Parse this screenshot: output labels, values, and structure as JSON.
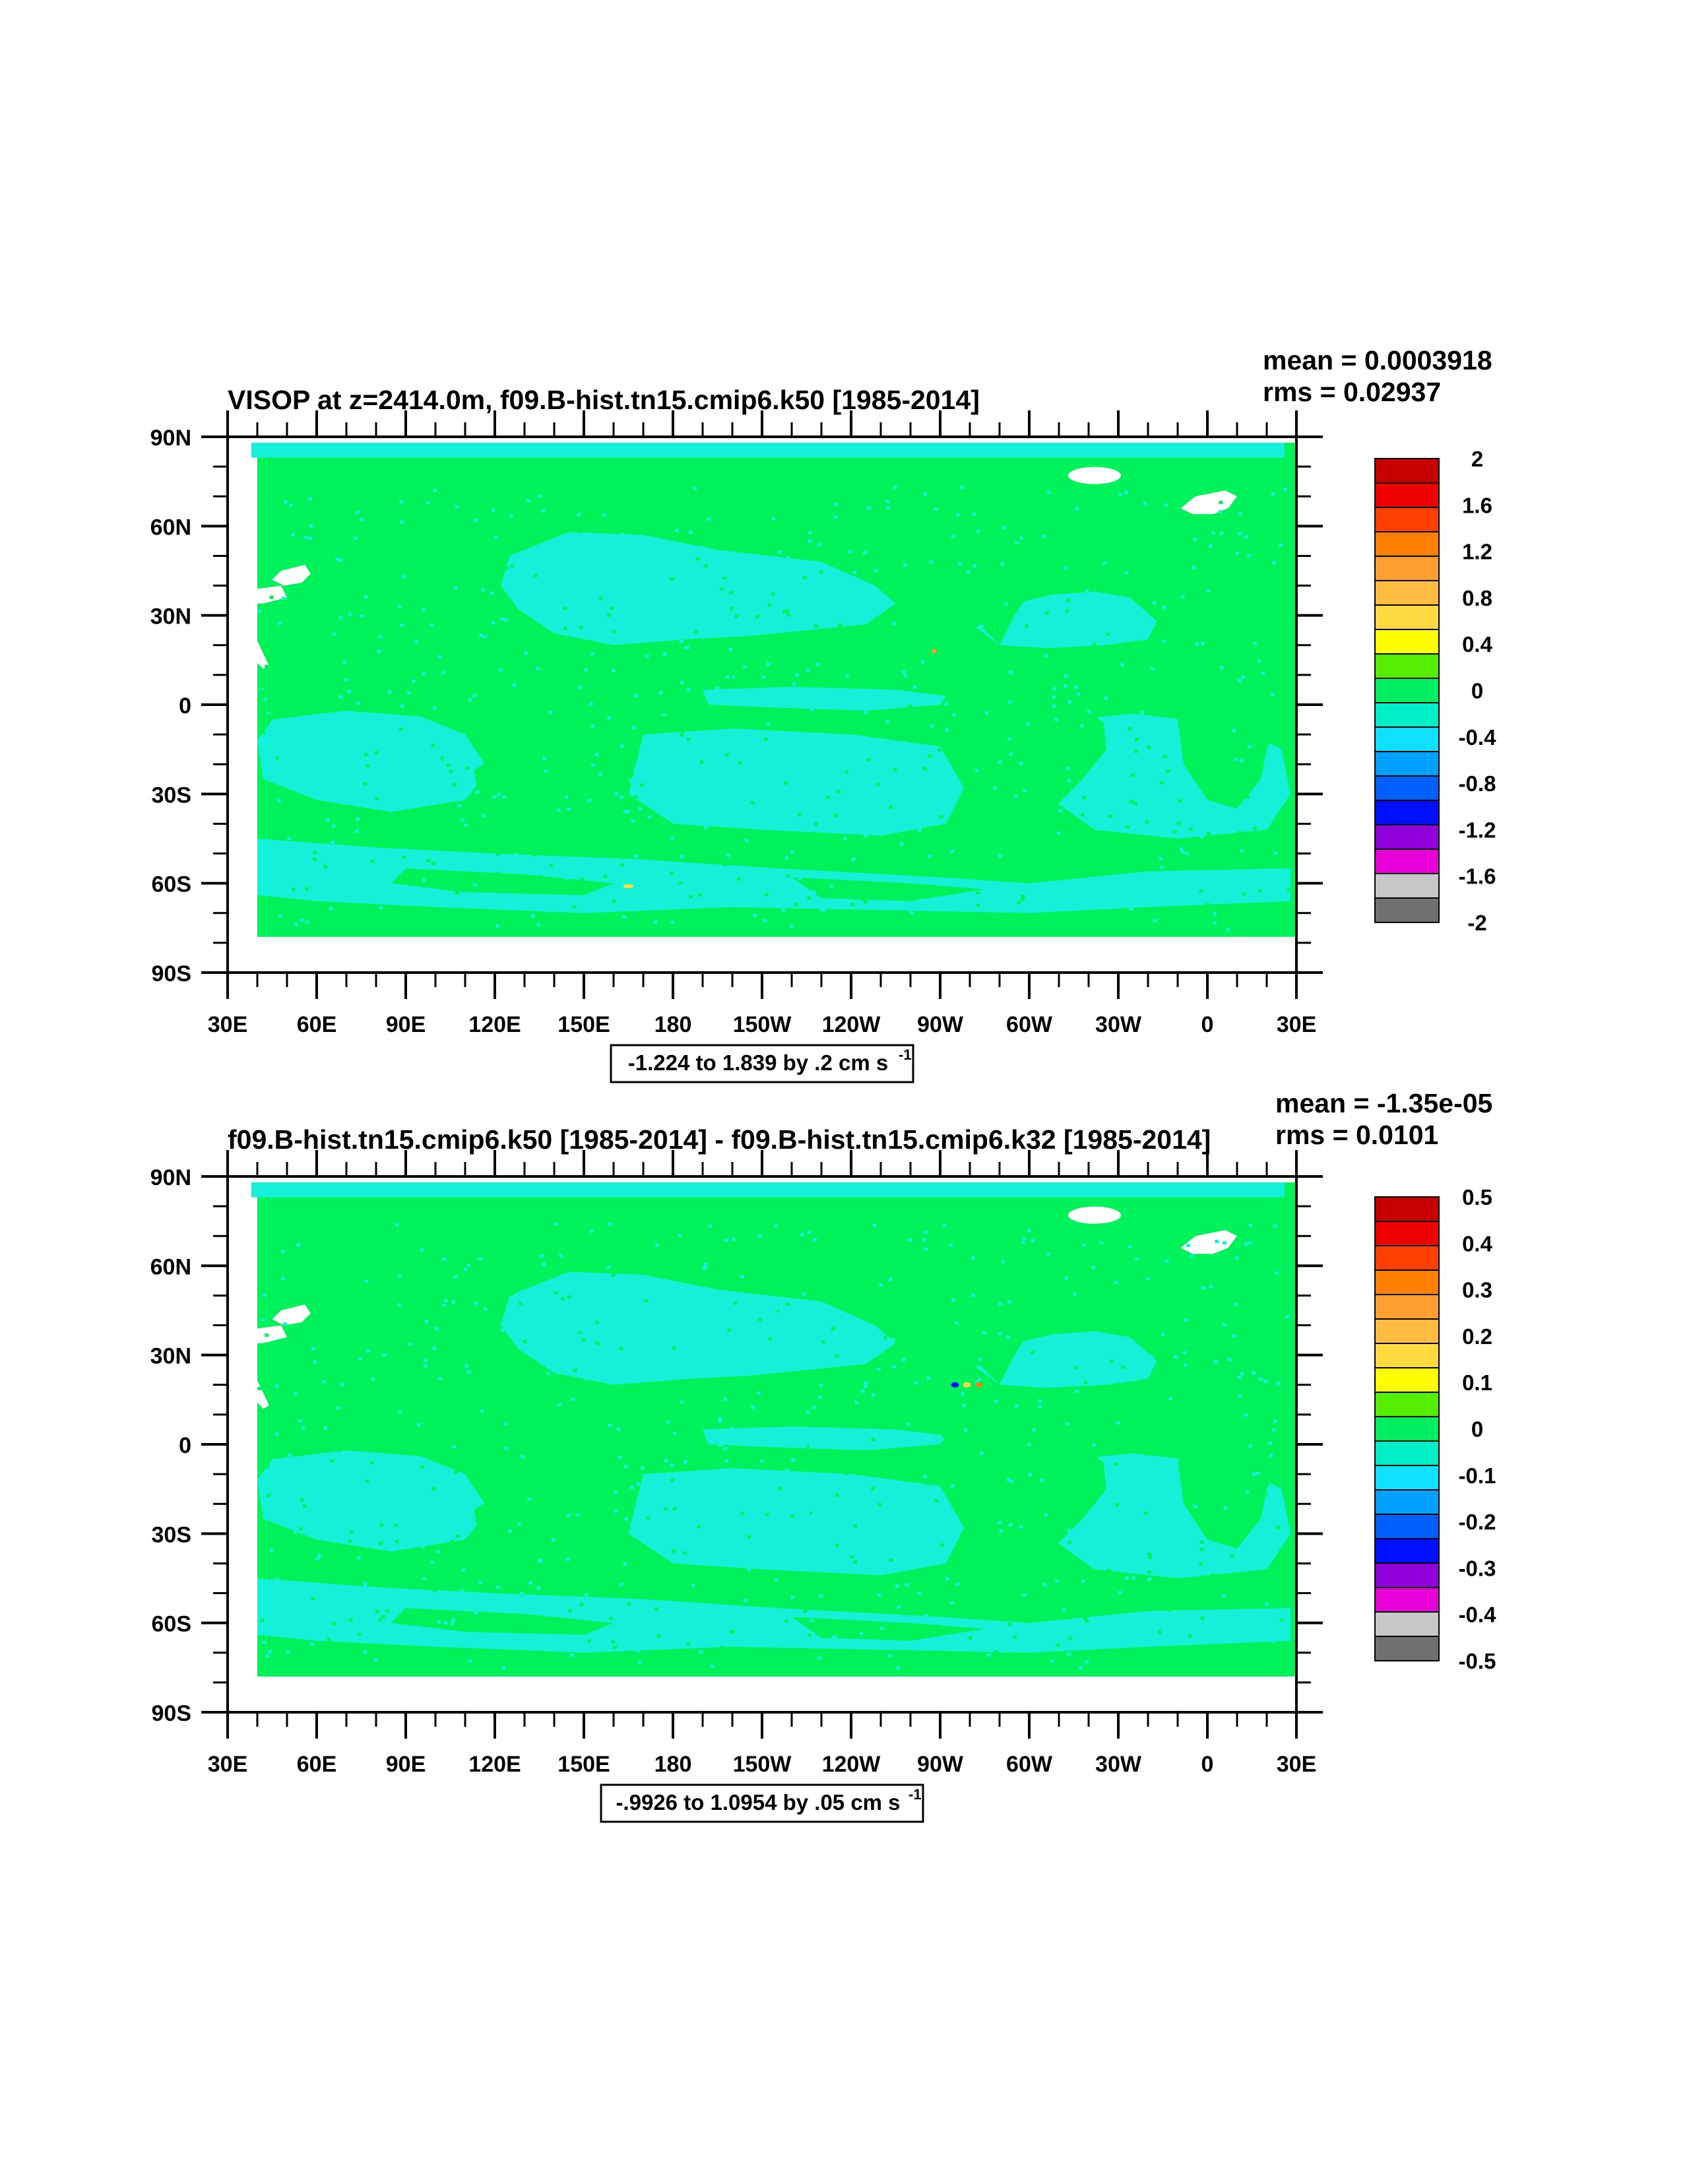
{
  "chart_data": [
    {
      "type": "heatmap",
      "title": "VISOP at z=2414.0m, f09.B-hist.tn15.cmip6.k50 [1985-2014]",
      "stats": {
        "mean": "mean = 0.0003918",
        "rms": "rms = 0.02937"
      },
      "y_ticks": [
        "90N",
        "60N",
        "30N",
        "0",
        "30S",
        "60S",
        "90S"
      ],
      "x_ticks": [
        "30E",
        "60E",
        "90E",
        "120E",
        "150E",
        "180",
        "150W",
        "120W",
        "90W",
        "60W",
        "30W",
        "0",
        "30E"
      ],
      "xlim": [
        30,
        390
      ],
      "ylim": [
        -90,
        90
      ],
      "range_label": "-1.224 to 1.839 by .2 cm s",
      "range_sup": "-1",
      "colorbar_labels": [
        "2",
        "1.6",
        "1.2",
        "0.8",
        "0.4",
        "0",
        "-0.4",
        "-0.8",
        "-1.2",
        "-1.6",
        "-2"
      ],
      "colorbar_colors": [
        "#c80000",
        "#ee0000",
        "#ff4000",
        "#ff8000",
        "#ff9f30",
        "#ffbc40",
        "#ffda40",
        "#ffff00",
        "#55ee00",
        "#00ee60",
        "#00eec8",
        "#10e0ff",
        "#00a0ff",
        "#0060ff",
        "#0010ff",
        "#9000d8",
        "#e800d8",
        "#c8c8c8",
        "#707070"
      ],
      "dominant_value": "0 to 0.2 (green)",
      "secondary_value": "-0.2 to 0 (cyan)"
    },
    {
      "type": "heatmap",
      "title": "f09.B-hist.tn15.cmip6.k50 [1985-2014] - f09.B-hist.tn15.cmip6.k32 [1985-2014]",
      "stats": {
        "mean": "mean = -1.35e-05",
        "rms": "rms = 0.0101"
      },
      "y_ticks": [
        "90N",
        "60N",
        "30N",
        "0",
        "30S",
        "60S",
        "90S"
      ],
      "x_ticks": [
        "30E",
        "60E",
        "90E",
        "120E",
        "150E",
        "180",
        "150W",
        "120W",
        "90W",
        "60W",
        "30W",
        "0",
        "30E"
      ],
      "xlim": [
        30,
        390
      ],
      "ylim": [
        -90,
        90
      ],
      "range_label": "-.9926 to 1.0954 by .05 cm s",
      "range_sup": "-1",
      "colorbar_labels": [
        "0.5",
        "0.4",
        "0.3",
        "0.2",
        "0.1",
        "0",
        "-0.1",
        "-0.2",
        "-0.3",
        "-0.4",
        "-0.5"
      ],
      "colorbar_colors": [
        "#c80000",
        "#ee0000",
        "#ff4000",
        "#ff8000",
        "#ff9f30",
        "#ffbc40",
        "#ffda40",
        "#ffff00",
        "#55ee00",
        "#00ee60",
        "#00eec8",
        "#10e0ff",
        "#00a0ff",
        "#0060ff",
        "#0010ff",
        "#9000d8",
        "#e800d8",
        "#c8c8c8",
        "#707070"
      ],
      "dominant_value": "0 to 0.05 (green)",
      "secondary_value": "-0.05 to 0 (cyan)"
    }
  ],
  "colors": {
    "field_green": "#00f25a",
    "field_cyan": "#16f0d8",
    "missing_white": "#ffffff"
  }
}
